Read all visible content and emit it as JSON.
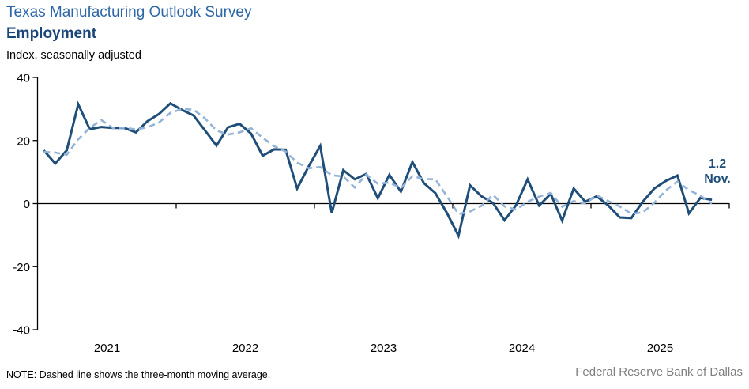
{
  "header": {
    "title": "Texas Manufacturing Outlook Survey",
    "subtitle": "Employment",
    "units": "Index, seasonally adjusted"
  },
  "annotation": {
    "value": "1.2",
    "month": "Nov."
  },
  "note": "NOTE: Dashed line shows the three-month moving average.",
  "attribution": "Federal Reserve Bank of Dallas",
  "colors": {
    "title": "#2C66A7",
    "subtitle": "#1B4679",
    "solid_line": "#1F4E79",
    "dashed_line": "#94B3D9",
    "axis": "#000000",
    "attribution": "#7F7F7F"
  },
  "chart_data": {
    "type": "line",
    "title": "Texas Manufacturing Outlook Survey - Employment",
    "ylabel": "Index, seasonally adjusted",
    "ylim": [
      -40,
      40
    ],
    "yticks": [
      40,
      20,
      0,
      -20,
      -40
    ],
    "x_unit": "month",
    "x_start": "2021-01",
    "x_end": "2025-11",
    "year_labels": [
      "2021",
      "2022",
      "2023",
      "2024",
      "2025"
    ],
    "grid": false,
    "legend_position": "none",
    "series": [
      {
        "name": "Employment index, monthly",
        "style": "solid",
        "values": [
          16.9,
          12.7,
          16.9,
          31.5,
          23.6,
          24.3,
          24.0,
          24.0,
          22.6,
          26.1,
          28.4,
          31.8,
          29.7,
          28.0,
          23.2,
          18.4,
          24.2,
          25.3,
          22.2,
          15.2,
          17.2,
          17.1,
          4.8,
          11.8,
          18.3,
          -3.0,
          10.6,
          7.7,
          9.4,
          1.7,
          9.1,
          3.8,
          13.2,
          6.5,
          3.3,
          -3.0,
          -10.2,
          5.8,
          2.3,
          0.2,
          -5.3,
          -0.5,
          7.7,
          -0.6,
          3.1,
          -5.4,
          4.8,
          0.6,
          2.3,
          -0.6,
          -4.4,
          -4.6,
          0.6,
          4.8,
          7.2,
          8.9,
          -3.1,
          1.8,
          1.2
        ]
      },
      {
        "name": "Three-month moving average",
        "style": "dashed",
        "values": [
          16.4,
          16.2,
          15.5,
          20.4,
          24.0,
          26.5,
          24.0,
          24.1,
          23.5,
          24.2,
          25.7,
          28.8,
          30.0,
          29.8,
          27.0,
          23.2,
          21.9,
          22.6,
          23.9,
          20.9,
          18.2,
          16.5,
          13.0,
          11.2,
          11.6,
          9.0,
          8.6,
          5.1,
          9.2,
          6.3,
          6.7,
          4.9,
          8.7,
          7.8,
          7.7,
          2.3,
          -3.3,
          -2.5,
          -0.7,
          2.8,
          -0.9,
          -1.9,
          0.6,
          2.2,
          3.4,
          -1.0,
          0.8,
          0.0,
          2.6,
          0.8,
          -0.9,
          -3.2,
          -2.8,
          0.3,
          4.2,
          7.0,
          4.3,
          2.5,
          0.0
        ]
      }
    ],
    "last_point_label": "1.2 Nov."
  }
}
